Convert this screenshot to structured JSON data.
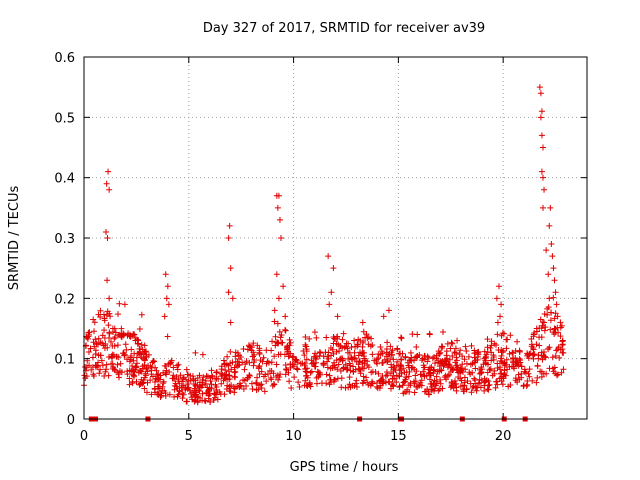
{
  "chart_data": {
    "type": "scatter",
    "title": "Day 327 of 2017, SRMTID for receiver av39",
    "xlabel": "GPS time / hours",
    "ylabel": "SRMTID / TECUs",
    "xlim": [
      0,
      24
    ],
    "ylim": [
      0,
      0.6
    ],
    "xticks": [
      0,
      5,
      10,
      15,
      20
    ],
    "xtick_labels": [
      "0",
      "5",
      "10",
      "15",
      "20"
    ],
    "yticks": [
      0,
      0.1,
      0.2,
      0.3,
      0.4,
      0.5,
      0.6
    ],
    "ytick_labels": [
      "0",
      "0.1",
      "0.2",
      "0.3",
      "0.4",
      "0.5",
      "0.6"
    ],
    "grid": true,
    "marker": "+",
    "color": "#e00000",
    "series": [
      {
        "name": "SRMTID",
        "baseline": [
          [
            0.0,
            0.09
          ],
          [
            0.5,
            0.12
          ],
          [
            1.0,
            0.13
          ],
          [
            1.5,
            0.11
          ],
          [
            2.0,
            0.1
          ],
          [
            2.5,
            0.1
          ],
          [
            3.0,
            0.08
          ],
          [
            3.5,
            0.06
          ],
          [
            4.0,
            0.07
          ],
          [
            4.5,
            0.06
          ],
          [
            5.0,
            0.05
          ],
          [
            5.5,
            0.05
          ],
          [
            6.0,
            0.05
          ],
          [
            6.5,
            0.06
          ],
          [
            7.0,
            0.08
          ],
          [
            7.5,
            0.08
          ],
          [
            8.0,
            0.09
          ],
          [
            8.5,
            0.08
          ],
          [
            9.0,
            0.09
          ],
          [
            9.5,
            0.11
          ],
          [
            10.0,
            0.08
          ],
          [
            10.5,
            0.09
          ],
          [
            11.0,
            0.1
          ],
          [
            11.5,
            0.09
          ],
          [
            12.0,
            0.1
          ],
          [
            12.5,
            0.09
          ],
          [
            13.0,
            0.09
          ],
          [
            13.5,
            0.1
          ],
          [
            14.0,
            0.08
          ],
          [
            14.5,
            0.09
          ],
          [
            15.0,
            0.08
          ],
          [
            15.5,
            0.07
          ],
          [
            16.0,
            0.08
          ],
          [
            16.5,
            0.07
          ],
          [
            17.0,
            0.08
          ],
          [
            17.5,
            0.09
          ],
          [
            18.0,
            0.08
          ],
          [
            18.5,
            0.08
          ],
          [
            19.0,
            0.08
          ],
          [
            19.5,
            0.09
          ],
          [
            20.0,
            0.1
          ],
          [
            20.5,
            0.09
          ],
          [
            21.0,
            0.09
          ],
          [
            21.5,
            0.1
          ],
          [
            22.0,
            0.13
          ],
          [
            22.5,
            0.13
          ],
          [
            22.9,
            0.1
          ]
        ],
        "peaks": [
          [
            1.15,
            0.41
          ],
          [
            1.08,
            0.39
          ],
          [
            1.2,
            0.38
          ],
          [
            1.05,
            0.31
          ],
          [
            1.12,
            0.3
          ],
          [
            1.1,
            0.23
          ],
          [
            1.2,
            0.2
          ],
          [
            1.95,
            0.19
          ],
          [
            2.4,
            0.14
          ],
          [
            3.9,
            0.24
          ],
          [
            4.0,
            0.22
          ],
          [
            3.95,
            0.2
          ],
          [
            4.05,
            0.19
          ],
          [
            3.85,
            0.17
          ],
          [
            6.95,
            0.32
          ],
          [
            6.9,
            0.3
          ],
          [
            7.0,
            0.25
          ],
          [
            6.9,
            0.21
          ],
          [
            7.1,
            0.2
          ],
          [
            7.0,
            0.16
          ],
          [
            9.2,
            0.37
          ],
          [
            9.3,
            0.37
          ],
          [
            9.35,
            0.33
          ],
          [
            9.25,
            0.35
          ],
          [
            9.4,
            0.3
          ],
          [
            9.2,
            0.24
          ],
          [
            9.5,
            0.22
          ],
          [
            9.3,
            0.2
          ],
          [
            9.1,
            0.18
          ],
          [
            9.6,
            0.17
          ],
          [
            11.65,
            0.27
          ],
          [
            11.9,
            0.25
          ],
          [
            11.8,
            0.21
          ],
          [
            11.7,
            0.19
          ],
          [
            12.1,
            0.17
          ],
          [
            13.3,
            0.16
          ],
          [
            14.3,
            0.17
          ],
          [
            14.55,
            0.18
          ],
          [
            15.9,
            0.14
          ],
          [
            16.5,
            0.14
          ],
          [
            17.1,
            0.12
          ],
          [
            17.8,
            0.13
          ],
          [
            18.2,
            0.12
          ],
          [
            19.8,
            0.22
          ],
          [
            19.7,
            0.2
          ],
          [
            19.9,
            0.19
          ],
          [
            19.85,
            0.17
          ],
          [
            19.75,
            0.16
          ],
          [
            21.75,
            0.55
          ],
          [
            21.8,
            0.54
          ],
          [
            21.85,
            0.51
          ],
          [
            21.8,
            0.5
          ],
          [
            21.85,
            0.47
          ],
          [
            21.9,
            0.45
          ],
          [
            21.85,
            0.41
          ],
          [
            21.9,
            0.4
          ],
          [
            21.95,
            0.38
          ],
          [
            21.9,
            0.35
          ],
          [
            22.25,
            0.35
          ],
          [
            22.2,
            0.32
          ],
          [
            22.3,
            0.29
          ],
          [
            22.05,
            0.28
          ],
          [
            22.35,
            0.27
          ],
          [
            22.4,
            0.25
          ],
          [
            22.15,
            0.24
          ],
          [
            22.45,
            0.23
          ],
          [
            22.5,
            0.21
          ],
          [
            22.2,
            0.2
          ],
          [
            22.55,
            0.19
          ],
          [
            22.6,
            0.17
          ],
          [
            21.95,
            0.16
          ],
          [
            21.6,
            0.15
          ],
          [
            22.45,
            0.15
          ]
        ],
        "point_count": 1400
      }
    ],
    "markers_on_x_axis": [
      0.35,
      0.45,
      0.55,
      3.05,
      13.15,
      15.1,
      15.15,
      18.05,
      20.05,
      21.05
    ]
  }
}
